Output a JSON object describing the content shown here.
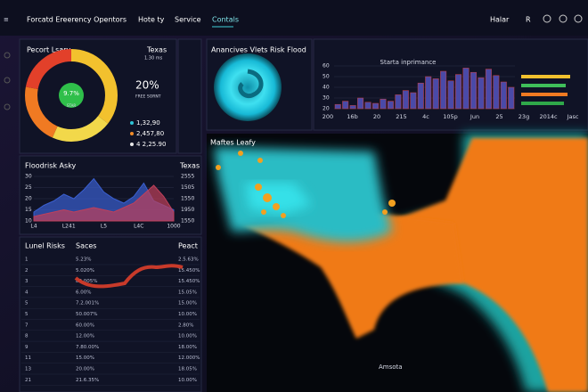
{
  "nav": {
    "brand": "Forcatd Ereerency Opentors",
    "links": [
      "Hote ty",
      "Service",
      "Contals"
    ],
    "right": [
      "Halar",
      "R"
    ]
  },
  "summary": {
    "title": "Pecort Lsary",
    "region": "Texas",
    "sub": "1.30 ms",
    "donut_center": "9.7%",
    "donut_label": "STAR",
    "big": "20%",
    "big_label": "FREE SORNT",
    "legend": [
      {
        "label": "1,32,90",
        "color": "#2ec4d6"
      },
      {
        "label": "2,457,80",
        "color": "#f28c28"
      },
      {
        "label": "4 2,25.90",
        "color": "#e8e8e8"
      }
    ]
  },
  "flood": {
    "title": "Floodrisk Asky",
    "region": "Texas",
    "ylim": [
      10,
      30
    ],
    "yticks": [
      30,
      25,
      20,
      15,
      10
    ],
    "right_labels": [
      "2555",
      "1505",
      "1550",
      "1950",
      "1550"
    ],
    "xlabels": [
      "L4",
      "L241",
      "L5",
      "L4C",
      "1000"
    ],
    "series": [
      {
        "color": "#3a5fd0",
        "values": [
          14,
          17,
          19,
          22,
          20,
          24,
          29,
          23,
          20,
          18,
          21,
          27,
          19,
          17,
          15
        ]
      },
      {
        "color": "#c0405a",
        "values": [
          12,
          13,
          14,
          15,
          14,
          15,
          16,
          15,
          14,
          16,
          18,
          22,
          26,
          21,
          14
        ]
      }
    ]
  },
  "table": {
    "headers": [
      "Lunel Risks",
      "Saces",
      "Peact"
    ],
    "rows": [
      [
        "1",
        "5.23%",
        "2.5.63%"
      ],
      [
        "2",
        "5.020%",
        "15.450%"
      ],
      [
        "3",
        "80.005%",
        "15.450%"
      ],
      [
        "4",
        "6.00%",
        "15.05%"
      ],
      [
        "5",
        "7.2.001%",
        "15.00%"
      ],
      [
        "5",
        "50.007%",
        "10.00%"
      ],
      [
        "7",
        "60.00%",
        "2.80%"
      ],
      [
        "8",
        "12.00%",
        "10.00%"
      ],
      [
        "9",
        "7.80.00%",
        "18.00%"
      ],
      [
        "11",
        "15.00%",
        "12.000%"
      ],
      [
        "13",
        "20.00%",
        "18.05%"
      ],
      [
        "21",
        "21.6.35%",
        "10.00%"
      ]
    ]
  },
  "analysis": {
    "title": "Anancives Vlets Risk Flood"
  },
  "bars": {
    "title": "Starta inprimance",
    "ylim": [
      20,
      60
    ],
    "yticks": [
      60,
      50,
      40,
      30,
      20
    ],
    "color": "#4a4aa8",
    "values": [
      24,
      27,
      23,
      30,
      26,
      25,
      29,
      27,
      33,
      37,
      35,
      44,
      50,
      48,
      55,
      46,
      52,
      58,
      54,
      49,
      57,
      51,
      45,
      40
    ],
    "xlabels": [
      "200",
      "16b",
      "20",
      "215",
      "4c",
      "105p",
      "Jun",
      "25",
      "23g",
      "2014c",
      "Jasc"
    ]
  },
  "map": {
    "title": "Maftes Leafy",
    "place": "Amsota"
  }
}
